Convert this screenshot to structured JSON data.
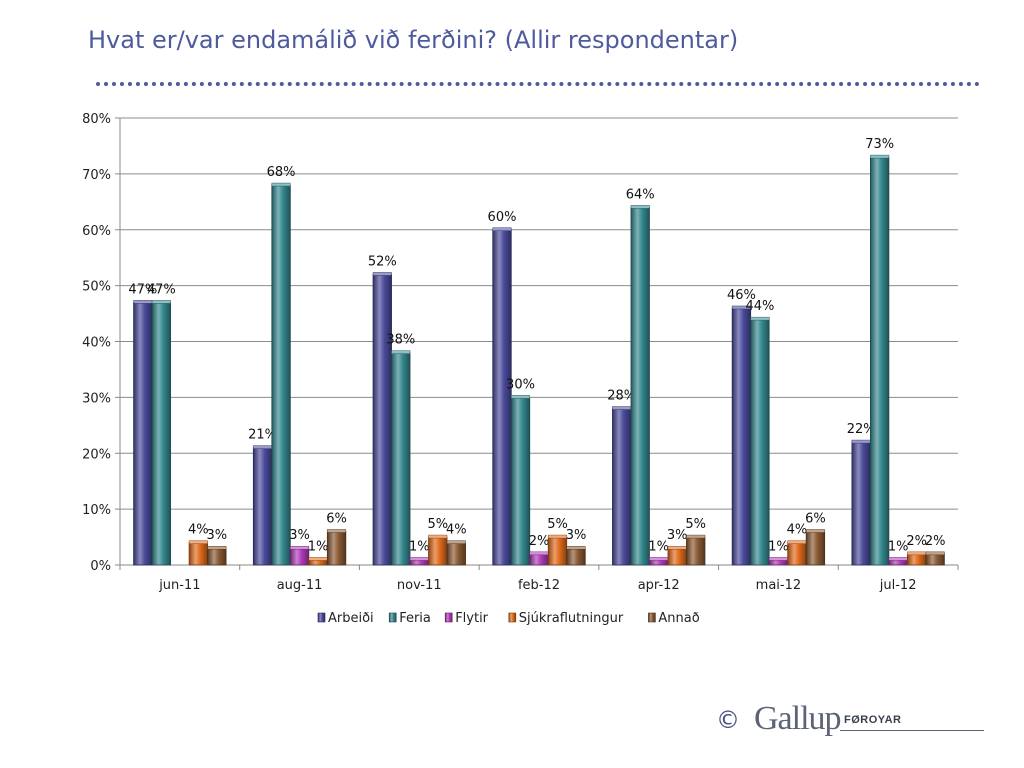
{
  "page": {
    "title": "Hvat er/var endamálið við ferðini? (Allir respondentar)"
  },
  "footer": {
    "copyright_symbol": "©",
    "brand": "Gallup",
    "brand_sub": "FØROYAR"
  },
  "chart_data": {
    "type": "bar",
    "title": "",
    "xlabel": "",
    "ylabel": "",
    "ylim": [
      0,
      80
    ],
    "y_ticks": [
      "0%",
      "10%",
      "20%",
      "30%",
      "40%",
      "50%",
      "60%",
      "70%",
      "80%"
    ],
    "grid": true,
    "legend_position": "bottom",
    "categories": [
      "jun-11",
      "aug-11",
      "nov-11",
      "feb-12",
      "apr-12",
      "mai-12",
      "jul-12"
    ],
    "series": [
      {
        "name": "Arbeiði",
        "color": "#4b4b9c",
        "values": [
          47,
          21,
          52,
          60,
          28,
          46,
          22
        ]
      },
      {
        "name": "Feria",
        "color": "#35898f",
        "values": [
          47,
          68,
          38,
          30,
          64,
          44,
          73
        ]
      },
      {
        "name": "Flytir",
        "color": "#b03cb8",
        "values": [
          null,
          3,
          1,
          2,
          1,
          1,
          1
        ]
      },
      {
        "name": "Sjúkraflutningur",
        "color": "#e06a1c",
        "values": [
          4,
          1,
          5,
          5,
          3,
          4,
          2
        ]
      },
      {
        "name": "Annað",
        "color": "#8b5a34",
        "values": [
          3,
          6,
          4,
          3,
          5,
          6,
          2
        ]
      }
    ],
    "data_labels": [
      [
        "47%",
        "21%",
        "52%",
        "60%",
        "28%",
        "46%",
        "22%"
      ],
      [
        "47%",
        "68%",
        "38%",
        "30%",
        "64%",
        "44%",
        "73%"
      ],
      [
        null,
        "3%",
        "1%",
        "2%",
        "1%",
        "1%",
        "1%"
      ],
      [
        "4%",
        "1%",
        "5%",
        "5%",
        "3%",
        "4%",
        "2%"
      ],
      [
        "3%",
        "6%",
        "4%",
        "3%",
        "5%",
        "6%",
        "2%"
      ]
    ]
  }
}
